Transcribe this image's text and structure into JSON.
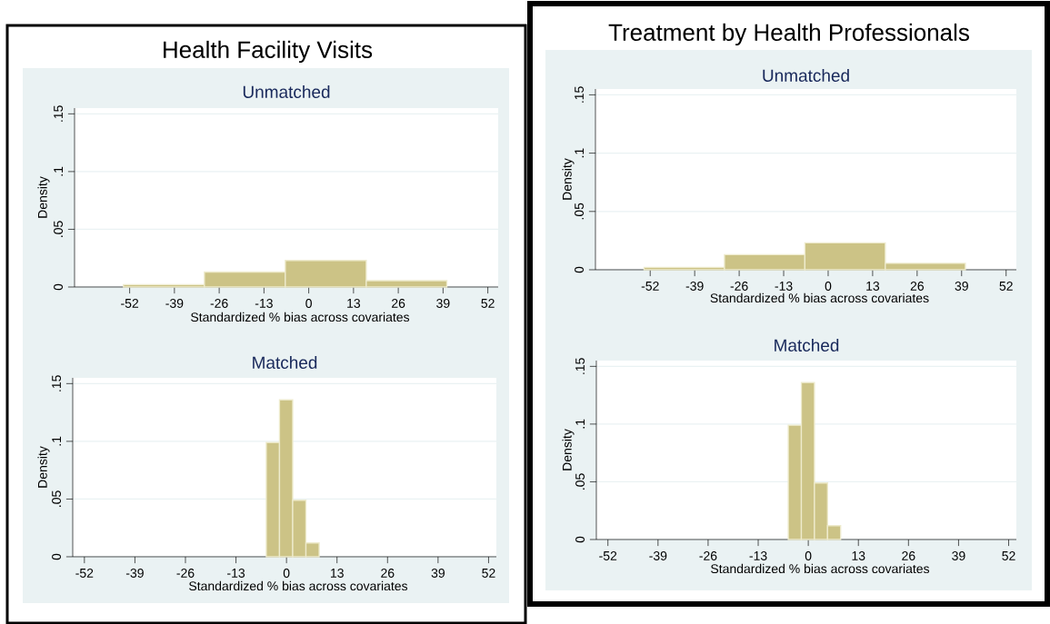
{
  "chart_data": [
    {
      "type": "histogram",
      "title": "Health Facility Visits",
      "subtitle": "Unmatched",
      "xlabel": "Standardized % bias across covariates",
      "ylabel": "Density",
      "bins": [
        -53.8,
        -30.3,
        -6.8,
        16.7,
        40.1
      ],
      "values": [
        0.002,
        0.013,
        0.023,
        0.0055
      ],
      "color": "#ccc386",
      "xlim": [
        -68,
        55
      ],
      "ylim": [
        0,
        0.155
      ],
      "xticks": [
        -52,
        -39,
        -26,
        -13,
        0,
        13,
        26,
        39,
        52
      ],
      "yticks": [
        {
          "value": 0,
          "label": "0"
        },
        {
          "value": 0.05,
          "label": ".05"
        },
        {
          "value": 0.1,
          "label": ".1"
        },
        {
          "value": 0.15,
          "label": ".15"
        }
      ],
      "grid": "y"
    },
    {
      "type": "histogram",
      "subtitle": "Matched",
      "xlabel": "Standardized % bias across covariates",
      "ylabel": "Density",
      "bins": [
        -5.2,
        -1.8,
        1.6,
        5.0,
        8.4
      ],
      "values": [
        0.099,
        0.136,
        0.049,
        0.012
      ],
      "color": "#ccc386",
      "xlim": [
        -55,
        54
      ],
      "ylim": [
        0,
        0.155
      ],
      "xticks": [
        -52,
        -39,
        -26,
        -13,
        0,
        13,
        26,
        39,
        52
      ],
      "yticks": [
        {
          "value": 0,
          "label": "0"
        },
        {
          "value": 0.05,
          "label": ".05"
        },
        {
          "value": 0.1,
          "label": ".1"
        },
        {
          "value": 0.15,
          "label": ".15"
        }
      ],
      "grid": "y"
    },
    {
      "type": "histogram",
      "title": "Treatment by Health Professionals",
      "subtitle": "Unmatched",
      "xlabel": "Standardized % bias across covariates",
      "ylabel": "Density",
      "bins": [
        -53.8,
        -30.3,
        -6.8,
        16.7,
        40.1
      ],
      "values": [
        0.002,
        0.013,
        0.023,
        0.0055
      ],
      "color": "#ccc386",
      "xlim": [
        -68,
        55
      ],
      "ylim": [
        0,
        0.155
      ],
      "xticks": [
        -52,
        -39,
        -26,
        -13,
        0,
        13,
        26,
        39,
        52
      ],
      "yticks": [
        {
          "value": 0,
          "label": "0"
        },
        {
          "value": 0.05,
          "label": ".05"
        },
        {
          "value": 0.1,
          "label": ".1"
        },
        {
          "value": 0.15,
          "label": ".15"
        }
      ],
      "grid": "y"
    },
    {
      "type": "histogram",
      "subtitle": "Matched",
      "xlabel": "Standardized % bias across covariates",
      "ylabel": "Density",
      "bins": [
        -5.2,
        -1.8,
        1.6,
        5.0,
        8.4
      ],
      "values": [
        0.099,
        0.136,
        0.049,
        0.012
      ],
      "color": "#ccc386",
      "xlim": [
        -55,
        54
      ],
      "ylim": [
        0,
        0.155
      ],
      "xticks": [
        -52,
        -39,
        -26,
        -13,
        0,
        13,
        26,
        39,
        52
      ],
      "yticks": [
        {
          "value": 0,
          "label": "0"
        },
        {
          "value": 0.05,
          "label": ".05"
        },
        {
          "value": 0.1,
          "label": ".1"
        },
        {
          "value": 0.15,
          "label": ".15"
        }
      ],
      "grid": "y"
    }
  ]
}
